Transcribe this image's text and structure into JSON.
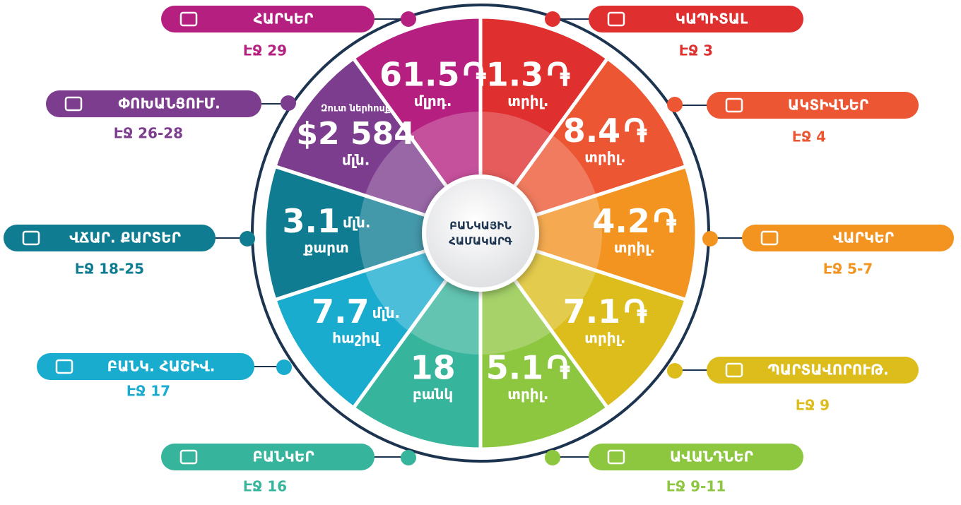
{
  "center": {
    "lines": [
      "ԲԱՆԿԱՅԻՆ",
      "ՀԱՄԱԿԱՐԳ"
    ]
  },
  "segments": [
    {
      "label": "ԿԱՊԻՏԱԼ",
      "ref": "ԷՋ 3",
      "value": "1.3",
      "currency": "֏",
      "note": "տրիլ.",
      "color": "#df2f2f"
    },
    {
      "label": "ԱԿՏԻՎՆԵՐ",
      "ref": "ԷՋ 4",
      "value": "8.4",
      "currency": "֏",
      "note": "տրիլ.",
      "color": "#ec5633"
    },
    {
      "label": "ՎԱՐԿԵՐ",
      "ref": "ԷՋ 5-7",
      "value": "4.2",
      "currency": "֏",
      "note": "տրիլ.",
      "color": "#f39320"
    },
    {
      "label": "ՊԱՐՏԱՎՈՐՈՒԹ.",
      "ref": "ԷՋ 9",
      "value": "7.1",
      "currency": "֏",
      "note": "տրիլ.",
      "color": "#dcbd1c"
    },
    {
      "label": "ԱՎԱՆԴՆԵՐ",
      "ref": "ԷՋ 9-11",
      "value": "5.1",
      "currency": "֏",
      "note": "տրիլ.",
      "color": "#8dc63f"
    },
    {
      "label": "ԲԱՆԿԵՐ",
      "ref": "ԷՋ 16",
      "value": "18",
      "note": "բանկ",
      "color": "#37b49c"
    },
    {
      "label": "ԲԱՆԿ. ՀԱՇԻՎ.",
      "ref": "ԷՋ 17",
      "value": "7.7",
      "unit": "մլն.",
      "note": "հաշիվ",
      "color": "#1aaccf"
    },
    {
      "label": "ՎՃԱՐ. ՔԱՐՏԵՐ",
      "ref": "ԷՋ 18-25",
      "value": "3.1",
      "unit": "մլն.",
      "note": "քարտ",
      "color": "#0f7c91"
    },
    {
      "label": "ՓՈԽԱՆՑՈՒՄ.",
      "ref": "ԷՋ 26-28",
      "pre": "Զուտ ներհոսք",
      "value": "$2 584",
      "note": "մլն.",
      "color": "#7d3d8e"
    },
    {
      "label": "ՀԱՐԿԵՐ",
      "ref": "ԷՋ 29",
      "value": "61.5",
      "currency": "֏",
      "note": "մլրդ.",
      "color": "#b51f80"
    }
  ]
}
